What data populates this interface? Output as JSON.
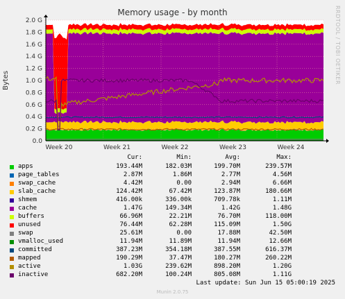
{
  "chart_data": {
    "type": "area",
    "title": "Memory usage - by month",
    "ylabel": "Bytes",
    "watermark": "RRDTOOL / TOBI OETIKER",
    "credit": "Munin 2.0.75",
    "x_ticks": [
      "Week 20",
      "Week 21",
      "Week 22",
      "Week 23",
      "Week 24"
    ],
    "y_ticks": [
      "0.0",
      "0.2 G",
      "0.4 G",
      "0.6 G",
      "0.8 G",
      "1.0 G",
      "1.2 G",
      "1.4 G",
      "1.6 G",
      "1.8 G",
      "2.0 G"
    ],
    "ylim": [
      0,
      2.0
    ],
    "y_unit": "G",
    "stack_total": 2.0,
    "dip_fraction": 0.23,
    "mid_weeks": [
      22.5,
      23
    ],
    "series": [
      {
        "name": "apps",
        "color": "#00cc00",
        "level": 0.19
      },
      {
        "name": "page_tables",
        "color": "#0066b3",
        "level": 0.0029
      },
      {
        "name": "swap_cache",
        "color": "#ff8000",
        "level": 0.0044
      },
      {
        "name": "slab_cache",
        "color": "#ffcc00",
        "level": 0.124
      },
      {
        "name": "shmem",
        "color": "#330099",
        "level": 0.0004
      },
      {
        "name": "cache",
        "color": "#990099",
        "level": 1.47
      },
      {
        "name": "buffers",
        "color": "#ccff00",
        "level": 0.067
      },
      {
        "name": "unused",
        "color": "#ff0000",
        "level": 0.076
      },
      {
        "name": "swap",
        "color": "#808080",
        "level": 0.0256
      },
      {
        "name": "vmalloc_used",
        "color": "#008f00",
        "level": 0.0119
      },
      {
        "name": "committed",
        "color": "#00487d",
        "level": 0.387
      },
      {
        "name": "mapped",
        "color": "#b35a00",
        "level": 0.19
      },
      {
        "name": "active",
        "color": "#b38f00",
        "level": 1.03
      },
      {
        "name": "inactive",
        "color": "#6b006b",
        "level": 0.68
      }
    ]
  },
  "legend": {
    "headers": [
      "Cur:",
      "Min:",
      "Avg:",
      "Max:"
    ],
    "rows": [
      {
        "name": "apps",
        "color": "#00cc00",
        "values": [
          "193.44M",
          "182.03M",
          "199.70M",
          "239.57M"
        ]
      },
      {
        "name": "page_tables",
        "color": "#0066b3",
        "values": [
          "2.87M",
          "1.86M",
          "2.77M",
          "4.56M"
        ]
      },
      {
        "name": "swap_cache",
        "color": "#ff8000",
        "values": [
          "4.42M",
          "0.00",
          "2.94M",
          "6.66M"
        ]
      },
      {
        "name": "slab_cache",
        "color": "#ffcc00",
        "values": [
          "124.42M",
          "67.42M",
          "123.87M",
          "180.66M"
        ]
      },
      {
        "name": "shmem",
        "color": "#330099",
        "values": [
          "416.00k",
          "336.00k",
          "709.78k",
          "1.11M"
        ]
      },
      {
        "name": "cache",
        "color": "#990099",
        "values": [
          "1.47G",
          "149.34M",
          "1.42G",
          "1.48G"
        ]
      },
      {
        "name": "buffers",
        "color": "#ccff00",
        "values": [
          "66.96M",
          "22.21M",
          "76.70M",
          "118.00M"
        ]
      },
      {
        "name": "unused",
        "color": "#ff0000",
        "values": [
          "76.44M",
          "62.28M",
          "115.09M",
          "1.50G"
        ]
      },
      {
        "name": "swap",
        "color": "#808080",
        "values": [
          "25.61M",
          "0.00",
          "17.88M",
          "42.50M"
        ]
      },
      {
        "name": "vmalloc_used",
        "color": "#008f00",
        "values": [
          "11.94M",
          "11.89M",
          "11.94M",
          "12.66M"
        ]
      },
      {
        "name": "committed",
        "color": "#00487d",
        "values": [
          "387.23M",
          "354.18M",
          "387.55M",
          "616.37M"
        ]
      },
      {
        "name": "mapped",
        "color": "#b35a00",
        "values": [
          "190.29M",
          "37.47M",
          "180.27M",
          "260.22M"
        ]
      },
      {
        "name": "active",
        "color": "#b38f00",
        "values": [
          "1.03G",
          "239.62M",
          "898.20M",
          "1.20G"
        ]
      },
      {
        "name": "inactive",
        "color": "#6b006b",
        "values": [
          "682.20M",
          "100.24M",
          "805.08M",
          "1.11G"
        ]
      }
    ]
  },
  "last_update": "Last update: Sun Jun 15 05:00:19 2025"
}
